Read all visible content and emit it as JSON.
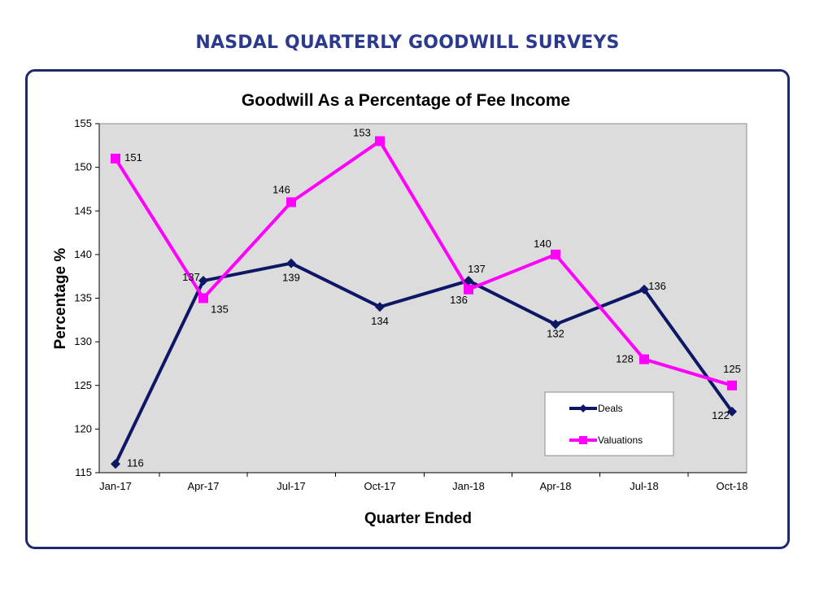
{
  "page": {
    "heading": "NASDAL QUARTERLY GOODWILL SURVEYS"
  },
  "colors": {
    "heading": "#2b3a8c",
    "frame_border": "#1f2a6b",
    "plot_background": "#dcdcdc",
    "deals": "#0d1766",
    "valuations": "#ff00ff"
  },
  "chart_data": {
    "type": "line",
    "title": "Goodwill As a Percentage of Fee Income",
    "xlabel": "Quarter Ended",
    "ylabel": "Percentage %",
    "categories": [
      "Jan-17",
      "Apr-17",
      "Jul-17",
      "Oct-17",
      "Jan-18",
      "Apr-18",
      "Jul-18",
      "Oct-18"
    ],
    "ylim": [
      115,
      155
    ],
    "yticks": [
      115,
      120,
      125,
      130,
      135,
      140,
      145,
      150,
      155
    ],
    "grid": false,
    "legend_position": "bottom-right",
    "series": [
      {
        "name": "Deals",
        "marker": "diamond",
        "values": [
          116,
          137,
          139,
          134,
          137,
          132,
          136,
          122
        ],
        "data_labels": [
          "116",
          "137",
          "139",
          "134",
          "137",
          "132",
          "136",
          "122"
        ]
      },
      {
        "name": "Valuations",
        "marker": "square",
        "values": [
          151,
          135,
          146,
          153,
          136,
          140,
          128,
          125
        ],
        "data_labels": [
          "151",
          "135",
          "146",
          "153",
          "136",
          "140",
          "128",
          "125"
        ]
      }
    ]
  }
}
